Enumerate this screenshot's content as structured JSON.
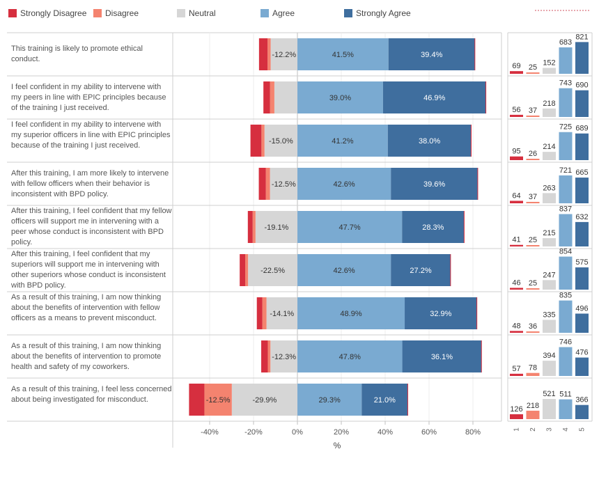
{
  "colors": {
    "strongly_disagree": "#d62f3f",
    "disagree": "#f4836f",
    "neutral": "#d6d6d6",
    "agree": "#7aaad1",
    "strongly_agree": "#3f6e9e"
  },
  "legend": [
    {
      "label": "Strongly Disagree",
      "color": "#d62f3f"
    },
    {
      "label": "Disagree",
      "color": "#f4836f"
    },
    {
      "label": "Neutral",
      "color": "#d6d6d6"
    },
    {
      "label": "Agree",
      "color": "#7aaad1"
    },
    {
      "label": "Strongly Agree",
      "color": "#3f6e9e"
    }
  ],
  "chart_data": [
    {
      "type": "bar",
      "orientation": "horizontal-diverging",
      "categories": [
        "This training is likely to promote ethical conduct.",
        "I feel confident in my ability to intervene with my peers in line with EPIC principles because of the training I just received.",
        "I feel confident in my ability to intervene with my superior officers in line with EPIC principles because of the training I just received.",
        "After this training, I am more likely to intervene with fellow officers when their behavior is inconsistent with BPD policy.",
        "After this training, I feel confident that my fellow officers will support me in intervening with a peer whose conduct is inconsistent with BPD policy.",
        "After this training, I feel confident that my superiors will support me in intervening with other superiors whose conduct is inconsistent with BPD policy.",
        "As a result of this training, I am now thinking about the benefits of intervention with fellow officers as a means to prevent misconduct.",
        "As a result of this training, I am now thinking about the benefits of intervention to promote health and safety of my coworkers.",
        "As a result of this training, I feel less concerned about being investigated for misconduct."
      ],
      "series": [
        {
          "name": "Strongly Disagree",
          "values": [
            -3.9,
            -3.0,
            -5.0,
            -3.2,
            -2.2,
            -2.5,
            -2.5,
            -3.0,
            -7.0
          ]
        },
        {
          "name": "Disagree",
          "values": [
            -1.4,
            -2.0,
            -1.4,
            -1.9,
            -1.3,
            -1.3,
            -1.9,
            -1.2,
            -12.5
          ]
        },
        {
          "name": "Neutral",
          "values": [
            -12.2,
            -10.5,
            -15.0,
            -12.5,
            -19.1,
            -22.5,
            -14.1,
            -12.3,
            -29.9
          ]
        },
        {
          "name": "Agree",
          "values": [
            41.5,
            39.0,
            41.2,
            42.6,
            47.7,
            42.6,
            48.9,
            47.8,
            29.3
          ]
        },
        {
          "name": "Strongly Agree",
          "values": [
            39.4,
            46.9,
            38.0,
            39.6,
            28.3,
            27.2,
            32.9,
            36.1,
            21.0
          ]
        }
      ],
      "labels": {
        "neutral": [
          "-12.2%",
          "",
          "-15.0%",
          "-12.5%",
          "-19.1%",
          "-22.5%",
          "-14.1%",
          "-12.3%",
          "-29.9%"
        ],
        "disagree": [
          "",
          "",
          "",
          "",
          "",
          "",
          "",
          "",
          "-12.5%"
        ],
        "agree": [
          "41.5%",
          "39.0%",
          "41.2%",
          "42.6%",
          "47.7%",
          "42.6%",
          "48.9%",
          "47.8%",
          "29.3%"
        ],
        "strongly_agree": [
          "39.4%",
          "46.9%",
          "38.0%",
          "39.6%",
          "28.3%",
          "27.2%",
          "32.9%",
          "36.1%",
          "21.0%"
        ]
      },
      "xlabel": "%",
      "xticks": [
        "-40%",
        "-20%",
        "0%",
        "20%",
        "40%",
        "60%",
        "80%"
      ],
      "xtick_values": [
        -40,
        -20,
        0,
        20,
        40,
        60,
        80
      ],
      "xlim": [
        -57,
        95
      ]
    },
    {
      "type": "bar",
      "categories": [
        "1",
        "2",
        "3",
        "4",
        "5"
      ],
      "series_counts": [
        [
          69,
          25,
          152,
          683,
          821
        ],
        [
          56,
          37,
          218,
          743,
          690
        ],
        [
          95,
          26,
          214,
          725,
          689
        ],
        [
          64,
          37,
          263,
          721,
          665
        ],
        [
          41,
          25,
          215,
          837,
          632
        ],
        [
          46,
          25,
          247,
          854,
          575
        ],
        [
          48,
          36,
          335,
          835,
          496
        ],
        [
          57,
          78,
          394,
          746,
          476
        ],
        [
          126,
          218,
          521,
          511,
          366
        ]
      ],
      "ylim": [
        0,
        900
      ]
    }
  ]
}
